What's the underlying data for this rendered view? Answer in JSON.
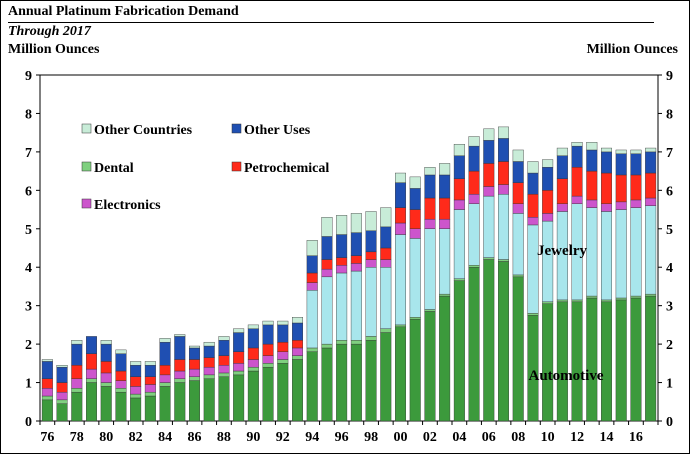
{
  "chart_data": {
    "type": "bar",
    "stacked": true,
    "title": "Annual Platinum Fabrication Demand",
    "subtitle": "Through 2017",
    "ylabel_left": "Million Ounces",
    "ylabel_right": "Million Ounces",
    "ylim": [
      0,
      9
    ],
    "yticks": [
      0,
      1,
      2,
      3,
      4,
      5,
      6,
      7,
      8,
      9
    ],
    "x": [
      1976,
      1977,
      1978,
      1979,
      1980,
      1981,
      1982,
      1983,
      1984,
      1985,
      1986,
      1987,
      1988,
      1989,
      1990,
      1991,
      1992,
      1993,
      1994,
      1995,
      1996,
      1997,
      1998,
      1999,
      2000,
      2001,
      2002,
      2003,
      2004,
      2005,
      2006,
      2007,
      2008,
      2009,
      2010,
      2011,
      2012,
      2013,
      2014,
      2015,
      2016,
      2017
    ],
    "xtick_labels": [
      "76",
      "78",
      "80",
      "82",
      "84",
      "86",
      "88",
      "90",
      "92",
      "94",
      "96",
      "98",
      "00",
      "02",
      "04",
      "06",
      "08",
      "10",
      "12",
      "14",
      "16"
    ],
    "annotations": [
      "Jewelry",
      "Automotive"
    ],
    "series": [
      {
        "name": "Automotive",
        "color": "#3c9a3c",
        "values": [
          0.55,
          0.45,
          0.75,
          1.0,
          0.9,
          0.75,
          0.6,
          0.65,
          0.9,
          1.0,
          1.05,
          1.1,
          1.15,
          1.2,
          1.3,
          1.4,
          1.5,
          1.6,
          1.8,
          1.9,
          2.0,
          2.0,
          2.1,
          2.3,
          2.45,
          2.65,
          2.85,
          3.25,
          3.65,
          4.0,
          4.2,
          4.15,
          3.75,
          2.75,
          3.05,
          3.1,
          3.1,
          3.2,
          3.1,
          3.15,
          3.2,
          3.25
        ]
      },
      {
        "name": "Dental",
        "color": "#7fd07f",
        "values": [
          0.1,
          0.1,
          0.1,
          0.1,
          0.1,
          0.1,
          0.1,
          0.1,
          0.1,
          0.1,
          0.1,
          0.1,
          0.1,
          0.1,
          0.1,
          0.1,
          0.1,
          0.1,
          0.1,
          0.1,
          0.1,
          0.1,
          0.1,
          0.1,
          0.05,
          0.05,
          0.05,
          0.05,
          0.05,
          0.05,
          0.05,
          0.05,
          0.05,
          0.05,
          0.05,
          0.05,
          0.05,
          0.05,
          0.05,
          0.05,
          0.05,
          0.05
        ]
      },
      {
        "name": "Jewelry",
        "color": "#a8e6ec",
        "values": [
          0.0,
          0.0,
          0.0,
          0.0,
          0.0,
          0.0,
          0.0,
          0.0,
          0.0,
          0.0,
          0.0,
          0.0,
          0.0,
          0.0,
          0.0,
          0.0,
          0.0,
          0.0,
          1.5,
          1.75,
          1.75,
          1.8,
          1.8,
          1.6,
          2.35,
          2.05,
          2.1,
          1.7,
          1.8,
          1.6,
          1.6,
          1.7,
          1.6,
          2.3,
          2.1,
          2.3,
          2.5,
          2.3,
          2.3,
          2.3,
          2.3,
          2.3
        ]
      },
      {
        "name": "Electronics",
        "color": "#cc55cc",
        "values": [
          0.2,
          0.2,
          0.25,
          0.25,
          0.25,
          0.2,
          0.2,
          0.2,
          0.2,
          0.2,
          0.2,
          0.2,
          0.2,
          0.2,
          0.2,
          0.2,
          0.2,
          0.2,
          0.2,
          0.2,
          0.2,
          0.2,
          0.2,
          0.2,
          0.3,
          0.25,
          0.25,
          0.25,
          0.25,
          0.25,
          0.25,
          0.25,
          0.25,
          0.2,
          0.2,
          0.2,
          0.2,
          0.2,
          0.2,
          0.2,
          0.2,
          0.2
        ]
      },
      {
        "name": "Petrochemical",
        "color": "#ff2a1a",
        "values": [
          0.25,
          0.25,
          0.35,
          0.4,
          0.3,
          0.25,
          0.25,
          0.2,
          0.25,
          0.3,
          0.25,
          0.25,
          0.25,
          0.3,
          0.3,
          0.3,
          0.25,
          0.2,
          0.25,
          0.25,
          0.2,
          0.2,
          0.2,
          0.3,
          0.4,
          0.5,
          0.55,
          0.55,
          0.55,
          0.6,
          0.6,
          0.6,
          0.55,
          0.6,
          0.6,
          0.65,
          0.75,
          0.75,
          0.8,
          0.7,
          0.65,
          0.65
        ]
      },
      {
        "name": "Other Uses",
        "color": "#1f4fb2",
        "values": [
          0.45,
          0.4,
          0.55,
          0.45,
          0.45,
          0.45,
          0.3,
          0.3,
          0.6,
          0.6,
          0.3,
          0.3,
          0.4,
          0.5,
          0.5,
          0.5,
          0.45,
          0.45,
          0.45,
          0.6,
          0.6,
          0.6,
          0.55,
          0.55,
          0.65,
          0.55,
          0.6,
          0.6,
          0.6,
          0.65,
          0.6,
          0.6,
          0.55,
          0.55,
          0.6,
          0.6,
          0.55,
          0.55,
          0.55,
          0.55,
          0.55,
          0.55
        ]
      },
      {
        "name": "Other Countries",
        "color": "#c8ecd8",
        "values": [
          0.05,
          0.05,
          0.1,
          0.0,
          0.1,
          0.1,
          0.1,
          0.1,
          0.1,
          0.05,
          0.05,
          0.1,
          0.1,
          0.1,
          0.1,
          0.1,
          0.1,
          0.15,
          0.4,
          0.5,
          0.5,
          0.5,
          0.5,
          0.5,
          0.25,
          0.3,
          0.2,
          0.3,
          0.3,
          0.25,
          0.3,
          0.3,
          0.3,
          0.3,
          0.2,
          0.2,
          0.1,
          0.2,
          0.1,
          0.1,
          0.1,
          0.1
        ]
      }
    ],
    "legend": [
      {
        "label": "Other Countries",
        "series": "Other Countries"
      },
      {
        "label": "Other Uses",
        "series": "Other Uses"
      },
      {
        "label": "Dental",
        "series": "Dental"
      },
      {
        "label": "Petrochemical",
        "series": "Petrochemical"
      },
      {
        "label": "Electronics",
        "series": "Electronics"
      }
    ]
  }
}
